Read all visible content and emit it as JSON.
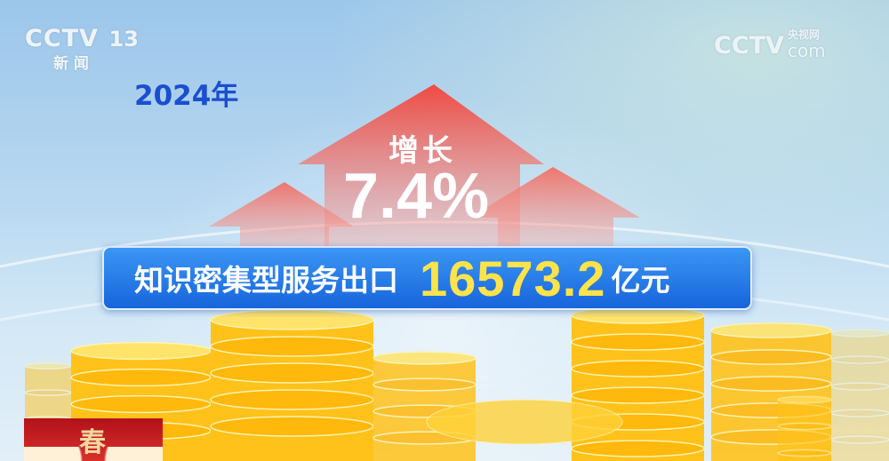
{
  "channel_logo": {
    "brand": "CCTV",
    "number": "13",
    "name": "新 闻"
  },
  "watermark": {
    "brand": "CCTV",
    "site": "央视网",
    "domain": "com"
  },
  "year": "2024年",
  "growth": {
    "label": "增长",
    "value": "7.4%"
  },
  "banner": {
    "label": "知识密集型服务出口",
    "value": "16573.2",
    "unit": "亿元"
  },
  "promo": {
    "glyph": "春"
  },
  "colors": {
    "arrow": "#f0524a",
    "banner": "#1f74e4",
    "value": "#ffe34a",
    "year": "#1a4fd0",
    "coin": "#ffc21a"
  }
}
